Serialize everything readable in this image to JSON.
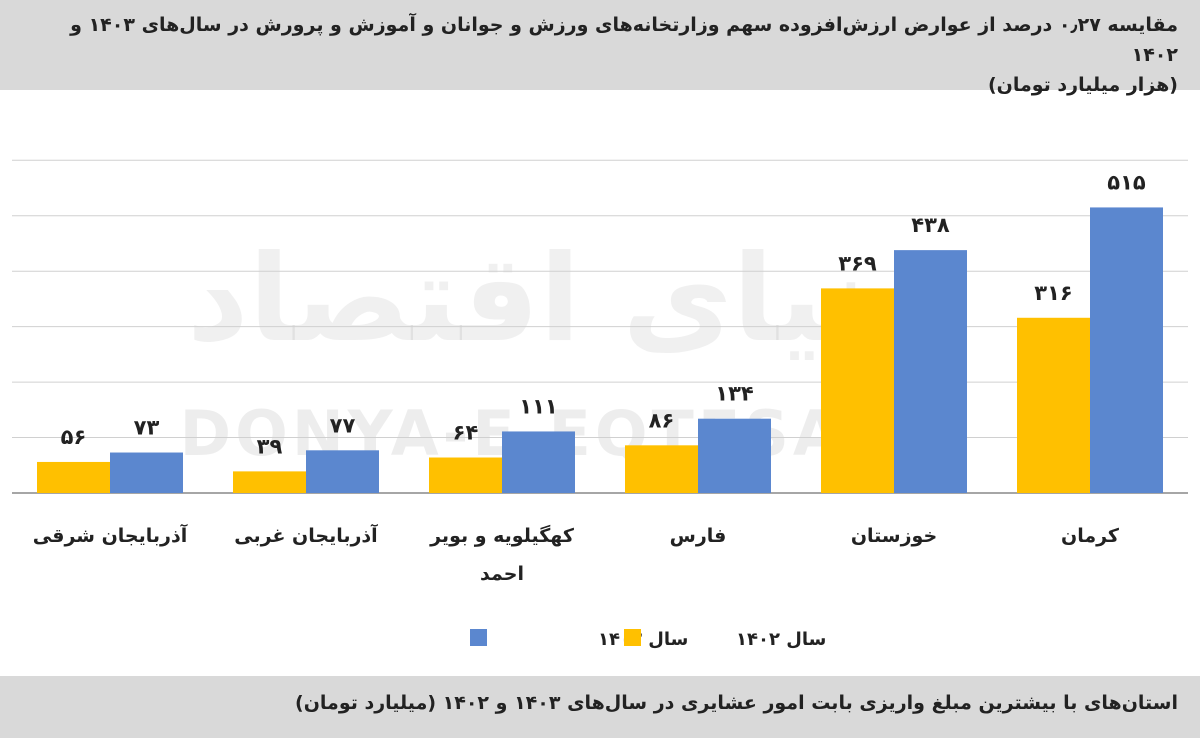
{
  "header": {
    "title": "مقایسه ۰٫۲۷ درصد از عوارض ارزش‌افزوده سهم وزارتخانه‌های ورزش و جوانان و آموزش و پرورش در سال‌های ۱۴۰۳ و ۱۴۰۲",
    "subtitle": "(هزار میلیارد تومان)"
  },
  "footer": {
    "caption": "استان‌های با بیشترین مبلغ واریزی بابت امور عشایری در سال‌های ۱۴۰۳ و ۱۴۰۲ (میلیارد تومان)"
  },
  "watermark": {
    "fa": "دنیای اقتصاد",
    "en": "DONYA-E-EQTESAD"
  },
  "colors": {
    "series_1402": "#ffc000",
    "series_1403": "#5b87cf",
    "grid": "#d0d0d0",
    "axis": "#888888"
  },
  "chart_data": {
    "type": "bar",
    "categories": [
      "آذربایجان شرقی",
      "آذربایجان غربی",
      "کهگیلویه و بویر احمد",
      "فارس",
      "خوزستان",
      "کرمان"
    ],
    "series": [
      {
        "name": "سال ۱۴۰۲",
        "values": [
          56,
          39,
          64,
          86,
          369,
          316
        ],
        "labels": [
          "۵۶",
          "۳۹",
          "۶۴",
          "۸۶",
          "۳۶۹",
          "۳۱۶"
        ],
        "color": "#ffc000"
      },
      {
        "name": "سال ۱۴۰۳",
        "values": [
          73,
          77,
          111,
          134,
          438,
          515
        ],
        "labels": [
          "۷۳",
          "۷۷",
          "۱۱۱",
          "۱۳۴",
          "۴۳۸",
          "۵۱۵"
        ],
        "color": "#5b87cf"
      }
    ],
    "ylim": [
      0,
      600
    ],
    "gridline_step": 100,
    "grid": true,
    "legend": "bottom-center"
  }
}
